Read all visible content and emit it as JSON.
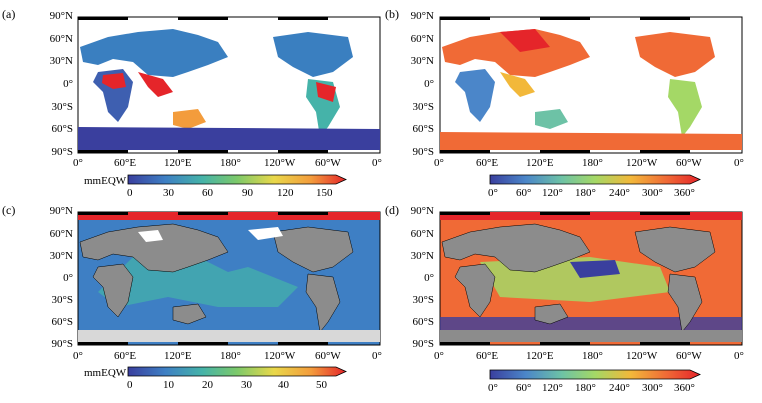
{
  "panels": [
    {
      "label": "(a)",
      "colorbar_unit": "mmEQW",
      "colorbar_ticks": [
        "0",
        "30",
        "60",
        "90",
        "120",
        "150"
      ]
    },
    {
      "label": "(b)",
      "colorbar_unit": "",
      "colorbar_ticks": [
        "0°",
        "60°",
        "120°",
        "180°",
        "240°",
        "300°",
        "360°"
      ]
    },
    {
      "label": "(c)",
      "colorbar_unit": "mmEQW",
      "colorbar_ticks": [
        "0",
        "10",
        "20",
        "30",
        "40",
        "50"
      ]
    },
    {
      "label": "(d)",
      "colorbar_unit": "",
      "colorbar_ticks": [
        "0°",
        "60°",
        "120°",
        "180°",
        "240°",
        "300°",
        "360°"
      ]
    }
  ],
  "lat_labels": [
    "90°N",
    "60°N",
    "30°N",
    "0°",
    "30°S",
    "60°S",
    "90°S"
  ],
  "lon_labels": [
    "0°",
    "60°E",
    "120°E",
    "180°",
    "120°W",
    "60°W",
    "0°"
  ],
  "colors": {
    "ocean_map_bg": "#ffffff",
    "land_masked": "#8c8c8c",
    "ramp_amplitude": [
      "#3a3f9e",
      "#3e7fc4",
      "#45b3a9",
      "#7cc96a",
      "#e9d84a",
      "#f39c3c",
      "#e5252a"
    ],
    "ramp_phase": [
      "#3a3f9e",
      "#4b86c9",
      "#6dc2a6",
      "#a4d866",
      "#f2b83a",
      "#f06a36",
      "#e5252a"
    ]
  }
}
